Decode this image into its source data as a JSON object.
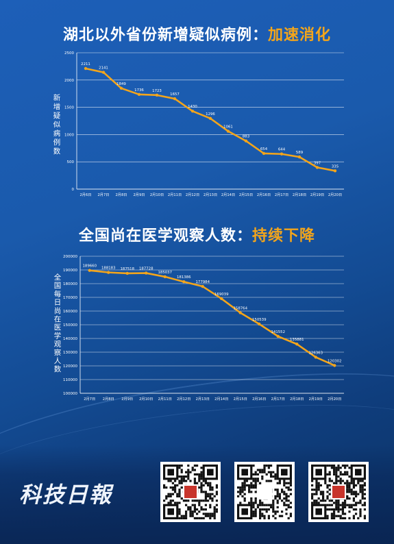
{
  "chart1": {
    "title_main": "湖北以外省份新增疑似病例：",
    "title_accent": "加速消化",
    "ylabel": "新增疑似病例数"
  },
  "chart2": {
    "title_main": "全国尚在医学观察人数：",
    "title_accent": "持续下降",
    "ylabel": "全国每日尚在医学观察人数"
  },
  "logo_text": "科技日報",
  "colors": {
    "line": "#f3a51b",
    "accent": "#f3a51b",
    "grid": "#ffffff"
  },
  "chart_data": [
    {
      "type": "line",
      "title": "湖北以外省份新增疑似病例：加速消化",
      "xlabel": "",
      "ylabel": "新增疑似病例数",
      "categories": [
        "2月6日",
        "2月7日",
        "2月8日",
        "2月9日",
        "2月10日",
        "2月11日",
        "2月12日",
        "2月13日",
        "2月14日",
        "2月15日",
        "2月16日",
        "2月17日",
        "2月18日",
        "2月19日",
        "2月20日"
      ],
      "series": [
        {
          "values": [
            2211,
            2141,
            1849,
            1736,
            1723,
            1657,
            1430,
            1296,
            1061,
            883,
            654,
            644,
            589,
            397,
            335
          ]
        }
      ],
      "ylim": [
        0,
        2500
      ],
      "yticks": [
        0,
        500,
        1000,
        1500,
        2000,
        2500
      ],
      "grid": true
    },
    {
      "type": "line",
      "title": "全国尚在医学观察人数：持续下降",
      "xlabel": "",
      "ylabel": "全国每日尚在医学观察人数",
      "categories": [
        "2月7日",
        "2月8日",
        "2月9日",
        "2月10日",
        "2月11日",
        "2月12日",
        "2月13日",
        "2月14日",
        "2月15日",
        "2月16日",
        "2月17日",
        "2月18日",
        "2月19日",
        "2月20日"
      ],
      "series": [
        {
          "values": [
            189660,
            188183,
            187518,
            187728,
            185037,
            181386,
            177984,
            169039,
            158764,
            150539,
            141552,
            135881,
            126363,
            120302
          ]
        }
      ],
      "ylim": [
        100000,
        200000
      ],
      "yticks": [
        100000,
        110000,
        120000,
        130000,
        140000,
        150000,
        160000,
        170000,
        180000,
        190000,
        200000
      ],
      "grid": true
    }
  ]
}
